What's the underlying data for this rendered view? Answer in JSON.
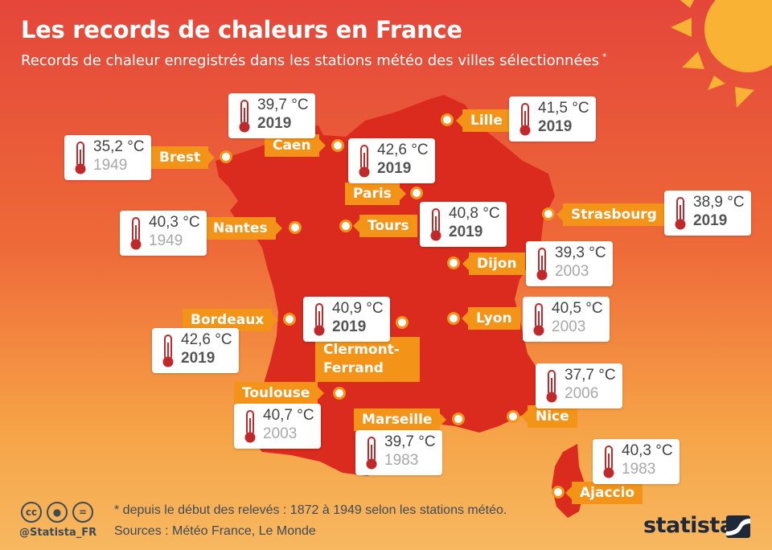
{
  "title": "Les records de chaleurs en France",
  "subtitle": "Records de chaleur enregistrés dans les stations météo des villes sélectionnées",
  "subtitle_marker": "*",
  "colors": {
    "background_top": "#e4463a",
    "background_bottom": "#f7b860",
    "map_fill": "#db2a1e",
    "label_orange": "#f39418",
    "thermometer_red": "#c0282a",
    "sun_yellow": "#f9b233",
    "text_dark": "#3d4a5a"
  },
  "cities": [
    {
      "name": "Brest",
      "temp": "35,2 °C",
      "year": "1949",
      "recent": false
    },
    {
      "name": "Caen",
      "temp": "39,7 °C",
      "year": "2019",
      "recent": true
    },
    {
      "name": "Lille",
      "temp": "41,5 °C",
      "year": "2019",
      "recent": true
    },
    {
      "name": "Paris",
      "temp": "42,6 °C",
      "year": "2019",
      "recent": true
    },
    {
      "name": "Strasbourg",
      "temp": "38,9 °C",
      "year": "2019",
      "recent": true
    },
    {
      "name": "Nantes",
      "temp": "40,3 °C",
      "year": "1949",
      "recent": false
    },
    {
      "name": "Tours",
      "temp": "40,8 °C",
      "year": "2019",
      "recent": true
    },
    {
      "name": "Dijon",
      "temp": "39,3 °C",
      "year": "2003",
      "recent": false
    },
    {
      "name": "Bordeaux",
      "temp": "42,6 °C",
      "year": "2019",
      "recent": true
    },
    {
      "name": "Clermont-Ferrand",
      "temp": "40,9 °C",
      "year": "2019",
      "recent": true
    },
    {
      "name": "Lyon",
      "temp": "40,5 °C",
      "year": "2003",
      "recent": false
    },
    {
      "name": "Toulouse",
      "temp": "40,7 °C",
      "year": "2003",
      "recent": false
    },
    {
      "name": "Nice",
      "temp": "37,7 °C",
      "year": "2006",
      "recent": false
    },
    {
      "name": "Marseille",
      "temp": "39,7 °C",
      "year": "1983",
      "recent": false
    },
    {
      "name": "Ajaccio",
      "temp": "40,3 °C",
      "year": "1983",
      "recent": false
    }
  ],
  "footer": {
    "note": "* depuis le début des relevés : 1872 à 1949 selon les stations météo.",
    "sources": "Sources : Météo France, Le Monde",
    "handle": "@Statista_FR",
    "brand": "statista",
    "license_icons": [
      "creative-commons-icon",
      "attribution-person-icon",
      "no-derivatives-equals-icon"
    ]
  }
}
